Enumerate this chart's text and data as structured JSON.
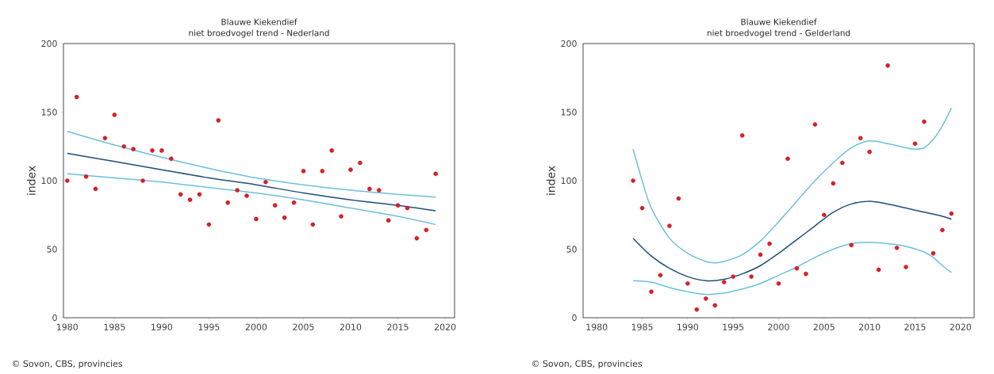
{
  "chart_data": [
    {
      "type": "scatter",
      "title": "Blauwe Kiekendief",
      "subtitle": "niet broedvogel trend - Nederland",
      "ylabel": "index",
      "annotations": [
        "© Sovon, CBS, provincies"
      ],
      "xlim": [
        1979.6,
        2021
      ],
      "ylim": [
        0,
        200
      ],
      "xticks": [
        1980,
        1985,
        1990,
        1995,
        2000,
        2005,
        2010,
        2015,
        2020
      ],
      "yticks": [
        0,
        50,
        100,
        150,
        200
      ],
      "grid": false,
      "marker": "circle",
      "series": [
        {
          "color": "#d42027",
          "x": [
            1980,
            1981,
            1982,
            1983,
            1984,
            1985,
            1986,
            1987,
            1988,
            1989,
            1990,
            1991,
            1992,
            1993,
            1994,
            1995,
            1996,
            1997,
            1998,
            1999,
            2000,
            2001,
            2002,
            2003,
            2004,
            2005,
            2006,
            2007,
            2008,
            2009,
            2010,
            2011,
            2012,
            2013,
            2014,
            2015,
            2016,
            2017,
            2018,
            2019
          ],
          "values": [
            100,
            161,
            103,
            94,
            131,
            148,
            125,
            123,
            100,
            122,
            122,
            116,
            90,
            86,
            90,
            68,
            144,
            84,
            93,
            89,
            72,
            99,
            82,
            73,
            84,
            107,
            68,
            107,
            122,
            74,
            108,
            113,
            94,
            93,
            71,
            82,
            80,
            58,
            64,
            105
          ]
        },
        {
          "type": "line",
          "marker": "none",
          "line_style": "solid",
          "color": "#6cc0dc",
          "x": [
            1980,
            1985,
            1990,
            1995,
            2000,
            2005,
            2010,
            2015,
            2019
          ],
          "values": [
            136,
            126,
            117,
            109,
            102,
            97,
            93,
            90,
            88
          ]
        },
        {
          "type": "line",
          "marker": "none",
          "line_style": "solid",
          "color": "#6cc0dc",
          "x": [
            1980,
            1985,
            1990,
            1995,
            2000,
            2005,
            2010,
            2015,
            2019
          ],
          "values": [
            105,
            102,
            99,
            95,
            91,
            86,
            80,
            74,
            68
          ]
        },
        {
          "type": "line",
          "marker": "none",
          "line_style": "solid",
          "color": "#1f4e79",
          "x": [
            1980,
            1985,
            1990,
            1995,
            2000,
            2005,
            2010,
            2015,
            2019
          ],
          "values": [
            120,
            114,
            108,
            102,
            97,
            91,
            86,
            82,
            78
          ]
        }
      ]
    },
    {
      "type": "scatter",
      "title": "Blauwe Kiekendief",
      "subtitle": "niet broedvogel trend - Gelderland",
      "ylabel": "index",
      "annotations": [
        "© Sovon, CBS, provincies"
      ],
      "xlim": [
        1978.5,
        2021.5
      ],
      "ylim": [
        0,
        200
      ],
      "xticks": [
        1980,
        1985,
        1990,
        1995,
        2000,
        2005,
        2010,
        2015,
        2020
      ],
      "yticks": [
        0,
        50,
        100,
        150,
        200
      ],
      "grid": false,
      "marker": "circle",
      "series": [
        {
          "color": "#d42027",
          "x": [
            1984,
            1985,
            1986,
            1987,
            1988,
            1989,
            1990,
            1991,
            1992,
            1993,
            1994,
            1995,
            1996,
            1997,
            1998,
            1999,
            2000,
            2001,
            2002,
            2003,
            2004,
            2005,
            2006,
            2007,
            2008,
            2009,
            2010,
            2011,
            2012,
            2013,
            2014,
            2015,
            2016,
            2017,
            2018,
            2019
          ],
          "values": [
            100,
            80,
            19,
            31,
            67,
            87,
            25,
            6,
            14,
            9,
            26,
            30,
            133,
            30,
            46,
            54,
            25,
            116,
            36,
            32,
            141,
            75,
            98,
            113,
            53,
            131,
            121,
            35,
            184,
            51,
            37,
            127,
            143,
            47,
            64,
            76
          ]
        },
        {
          "type": "line",
          "marker": "none",
          "line_style": "solid",
          "color": "#6cc0dc",
          "x": [
            1984,
            1985,
            1986,
            1988,
            1990,
            1992,
            1993,
            1994,
            1996,
            1998,
            2000,
            2002,
            2004,
            2006,
            2008,
            2010,
            2012,
            2014,
            2015,
            2016,
            2017,
            2018,
            2019
          ],
          "values": [
            123,
            100,
            80,
            58,
            47,
            41,
            40,
            41,
            46,
            56,
            70,
            85,
            100,
            113,
            124,
            129,
            127,
            124,
            123,
            124,
            130,
            140,
            153
          ]
        },
        {
          "type": "line",
          "marker": "none",
          "line_style": "solid",
          "color": "#6cc0dc",
          "x": [
            1984,
            1986,
            1988,
            1990,
            1992,
            1994,
            1996,
            1998,
            2000,
            2002,
            2004,
            2006,
            2008,
            2010,
            2012,
            2014,
            2016,
            2017,
            2018,
            2019
          ],
          "values": [
            27,
            26,
            22,
            19,
            17,
            18,
            21,
            25,
            31,
            37,
            44,
            50,
            54,
            55,
            54,
            52,
            48,
            44,
            38,
            33
          ]
        },
        {
          "type": "line",
          "marker": "none",
          "line_style": "solid",
          "color": "#1f4e79",
          "x": [
            1984,
            1986,
            1988,
            1990,
            1992,
            1994,
            1996,
            1998,
            2000,
            2002,
            2004,
            2006,
            2008,
            2010,
            2012,
            2014,
            2016,
            2018,
            2019
          ],
          "values": [
            58,
            45,
            36,
            30,
            27,
            28,
            32,
            38,
            47,
            57,
            67,
            77,
            83,
            85,
            83,
            80,
            77,
            74,
            72
          ]
        }
      ]
    }
  ]
}
